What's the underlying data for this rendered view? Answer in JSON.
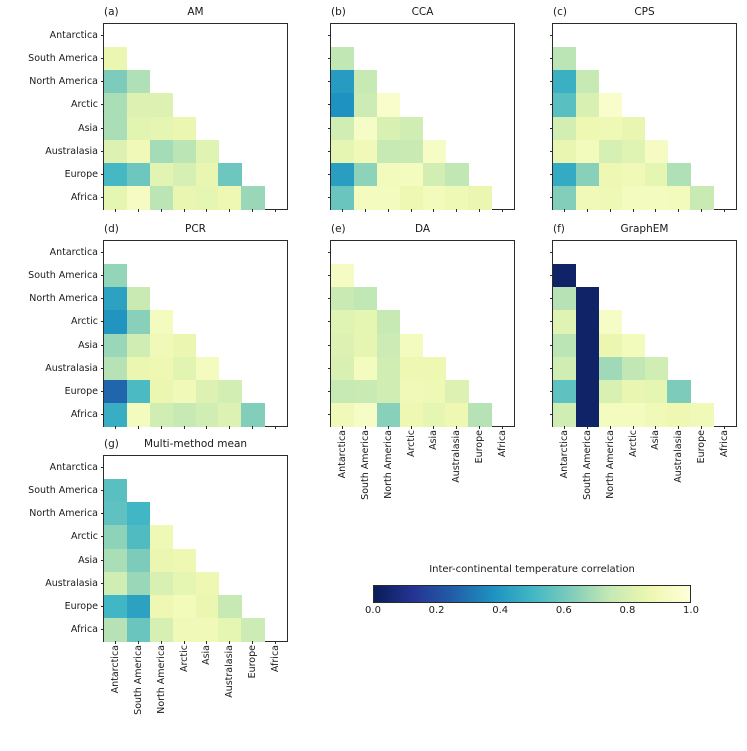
{
  "figure": {
    "background": "#ffffff",
    "text_color": "#1a1a1a"
  },
  "chart_data": {
    "type": "heatmap",
    "subtype": "lower-triangular correlation matrices, 7 method panels",
    "categories": [
      "Antarctica",
      "South America",
      "North America",
      "Arctic",
      "Asia",
      "Australasia",
      "Europe",
      "Africa"
    ],
    "triangle": "strict_lower",
    "value_range": [
      0,
      1
    ],
    "grid": false,
    "colormap_name": "YlGnBu_r",
    "colormap_anchors": [
      {
        "pos": 0.0,
        "color": "#081d58"
      },
      {
        "pos": 0.125,
        "color": "#253494"
      },
      {
        "pos": 0.25,
        "color": "#225ea8"
      },
      {
        "pos": 0.375,
        "color": "#1d91c0"
      },
      {
        "pos": 0.5,
        "color": "#41b6c4"
      },
      {
        "pos": 0.625,
        "color": "#7fcdbb"
      },
      {
        "pos": 0.75,
        "color": "#c7e9b4"
      },
      {
        "pos": 0.875,
        "color": "#edf8b1"
      },
      {
        "pos": 1.0,
        "color": "#ffffd9"
      }
    ],
    "panels": [
      {
        "tag": "(a)",
        "title": "AM",
        "grid_pos": [
          0,
          0
        ],
        "y_labels": true,
        "x_labels": false,
        "values": [
          [],
          [
            0.87
          ],
          [
            0.62,
            0.71
          ],
          [
            0.7,
            0.82,
            0.82
          ],
          [
            0.7,
            0.84,
            0.85,
            0.87
          ],
          [
            0.82,
            0.9,
            0.69,
            0.73,
            0.83
          ],
          [
            0.51,
            0.59,
            0.84,
            0.8,
            0.86,
            0.59
          ],
          [
            0.85,
            0.93,
            0.73,
            0.86,
            0.85,
            0.88,
            0.67
          ]
        ]
      },
      {
        "tag": "(b)",
        "title": "CCA",
        "grid_pos": [
          0,
          1
        ],
        "y_labels": false,
        "x_labels": false,
        "values": [
          [],
          [
            0.74
          ],
          [
            0.41,
            0.75
          ],
          [
            0.38,
            0.77,
            0.96
          ],
          [
            0.78,
            0.94,
            0.81,
            0.78
          ],
          [
            0.85,
            0.9,
            0.75,
            0.76,
            0.94
          ],
          [
            0.42,
            0.65,
            0.91,
            0.92,
            0.79,
            0.74
          ],
          [
            0.58,
            0.92,
            0.92,
            0.88,
            0.91,
            0.89,
            0.87
          ]
        ]
      },
      {
        "tag": "(c)",
        "title": "CPS",
        "grid_pos": [
          0,
          2
        ],
        "y_labels": false,
        "x_labels": false,
        "values": [
          [],
          [
            0.73
          ],
          [
            0.48,
            0.75
          ],
          [
            0.55,
            0.81,
            0.96
          ],
          [
            0.79,
            0.88,
            0.89,
            0.86
          ],
          [
            0.86,
            0.91,
            0.8,
            0.83,
            0.93
          ],
          [
            0.46,
            0.64,
            0.88,
            0.9,
            0.85,
            0.71
          ],
          [
            0.63,
            0.9,
            0.89,
            0.92,
            0.92,
            0.91,
            0.76
          ]
        ]
      },
      {
        "tag": "(d)",
        "title": "PCR",
        "grid_pos": [
          1,
          0
        ],
        "y_labels": true,
        "x_labels": false,
        "values": [
          [],
          [
            0.66
          ],
          [
            0.43,
            0.76
          ],
          [
            0.39,
            0.64,
            0.92
          ],
          [
            0.67,
            0.78,
            0.9,
            0.87
          ],
          [
            0.72,
            0.87,
            0.88,
            0.84,
            0.92
          ],
          [
            0.27,
            0.52,
            0.87,
            0.9,
            0.82,
            0.79
          ],
          [
            0.47,
            0.92,
            0.78,
            0.75,
            0.78,
            0.82,
            0.63
          ]
        ]
      },
      {
        "tag": "(e)",
        "title": "DA",
        "grid_pos": [
          1,
          1
        ],
        "y_labels": false,
        "x_labels": true,
        "values": [
          [],
          [
            0.93
          ],
          [
            0.76,
            0.74
          ],
          [
            0.83,
            0.85,
            0.75
          ],
          [
            0.82,
            0.85,
            0.77,
            0.92
          ],
          [
            0.81,
            0.92,
            0.78,
            0.88,
            0.88
          ],
          [
            0.75,
            0.76,
            0.78,
            0.9,
            0.89,
            0.82
          ],
          [
            0.9,
            0.94,
            0.64,
            0.88,
            0.85,
            0.88,
            0.72
          ]
        ]
      },
      {
        "tag": "(f)",
        "title": "GraphEM",
        "grid_pos": [
          1,
          2
        ],
        "y_labels": false,
        "x_labels": true,
        "values": [
          [],
          [
            0.03
          ],
          [
            0.72,
            0.03
          ],
          [
            0.83,
            0.03,
            0.94
          ],
          [
            0.73,
            0.03,
            0.87,
            0.91
          ],
          [
            0.78,
            0.03,
            0.68,
            0.74,
            0.78
          ],
          [
            0.56,
            0.03,
            0.81,
            0.86,
            0.85,
            0.62
          ],
          [
            0.78,
            0.03,
            0.92,
            0.92,
            0.9,
            0.88,
            0.9
          ]
        ]
      },
      {
        "tag": "(g)",
        "title": "Multi-method mean",
        "grid_pos": [
          2,
          0
        ],
        "y_labels": true,
        "x_labels": true,
        "values": [
          [],
          [
            0.55
          ],
          [
            0.56,
            0.5
          ],
          [
            0.65,
            0.53,
            0.89
          ],
          [
            0.7,
            0.62,
            0.87,
            0.88
          ],
          [
            0.78,
            0.67,
            0.81,
            0.85,
            0.88
          ],
          [
            0.5,
            0.43,
            0.88,
            0.91,
            0.87,
            0.75
          ],
          [
            0.72,
            0.58,
            0.8,
            0.9,
            0.9,
            0.85,
            0.77
          ]
        ]
      }
    ],
    "colorbar": {
      "title": "Inter-continental temperature correlation",
      "tick_labels": [
        "0.0",
        "0.2",
        "0.4",
        "0.6",
        "0.8",
        "1.0"
      ],
      "orientation": "horizontal",
      "position": "bottom-right"
    }
  }
}
